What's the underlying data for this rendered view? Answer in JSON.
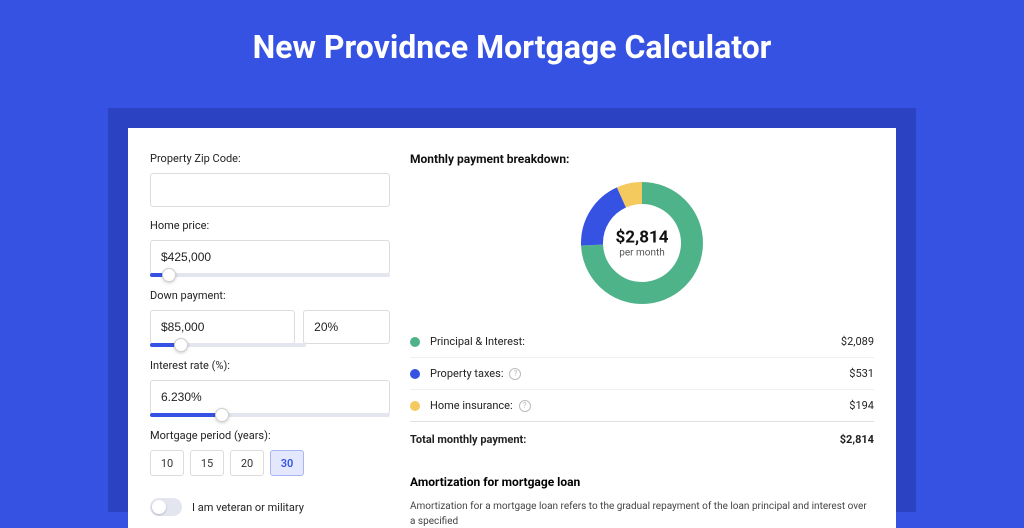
{
  "page": {
    "background_color": "#3652e3",
    "shadow_band_color": "#2b43c2",
    "title": "New Providnce Mortgage Calculator",
    "title_color": "#ffffff"
  },
  "form": {
    "zip": {
      "label": "Property Zip Code:",
      "value": ""
    },
    "home_price": {
      "label": "Home price:",
      "value": "$425,000",
      "slider_pct": 8
    },
    "down_payment": {
      "label": "Down payment:",
      "amount": "$85,000",
      "percent": "20%",
      "slider_pct": 20
    },
    "interest_rate": {
      "label": "Interest rate (%):",
      "value": "6.230%",
      "slider_pct": 30
    },
    "period": {
      "label": "Mortgage period (years):",
      "options": [
        "10",
        "15",
        "20",
        "30"
      ],
      "active_index": 3
    },
    "veteran": {
      "label": "I am veteran or military",
      "checked": false
    }
  },
  "breakdown": {
    "title": "Monthly payment breakdown:",
    "center_value": "$2,814",
    "center_sub": "per month",
    "slices": [
      {
        "key": "principal_interest",
        "label": "Principal & Interest:",
        "value": "$2,089",
        "color": "#4fb38a",
        "pct": 74.2
      },
      {
        "key": "property_taxes",
        "label": "Property taxes:",
        "value": "$531",
        "color": "#3652e3",
        "pct": 18.9,
        "info": true
      },
      {
        "key": "home_insurance",
        "label": "Home insurance:",
        "value": "$194",
        "color": "#f4c95d",
        "pct": 6.9,
        "info": true
      }
    ],
    "total": {
      "label": "Total monthly payment:",
      "value": "$2,814"
    },
    "donut": {
      "radius": 50,
      "stroke_width": 22,
      "bg": "#ffffff"
    }
  },
  "amortization": {
    "title": "Amortization for mortgage loan",
    "text": "Amortization for a mortgage loan refers to the gradual repayment of the loan principal and interest over a specified"
  }
}
